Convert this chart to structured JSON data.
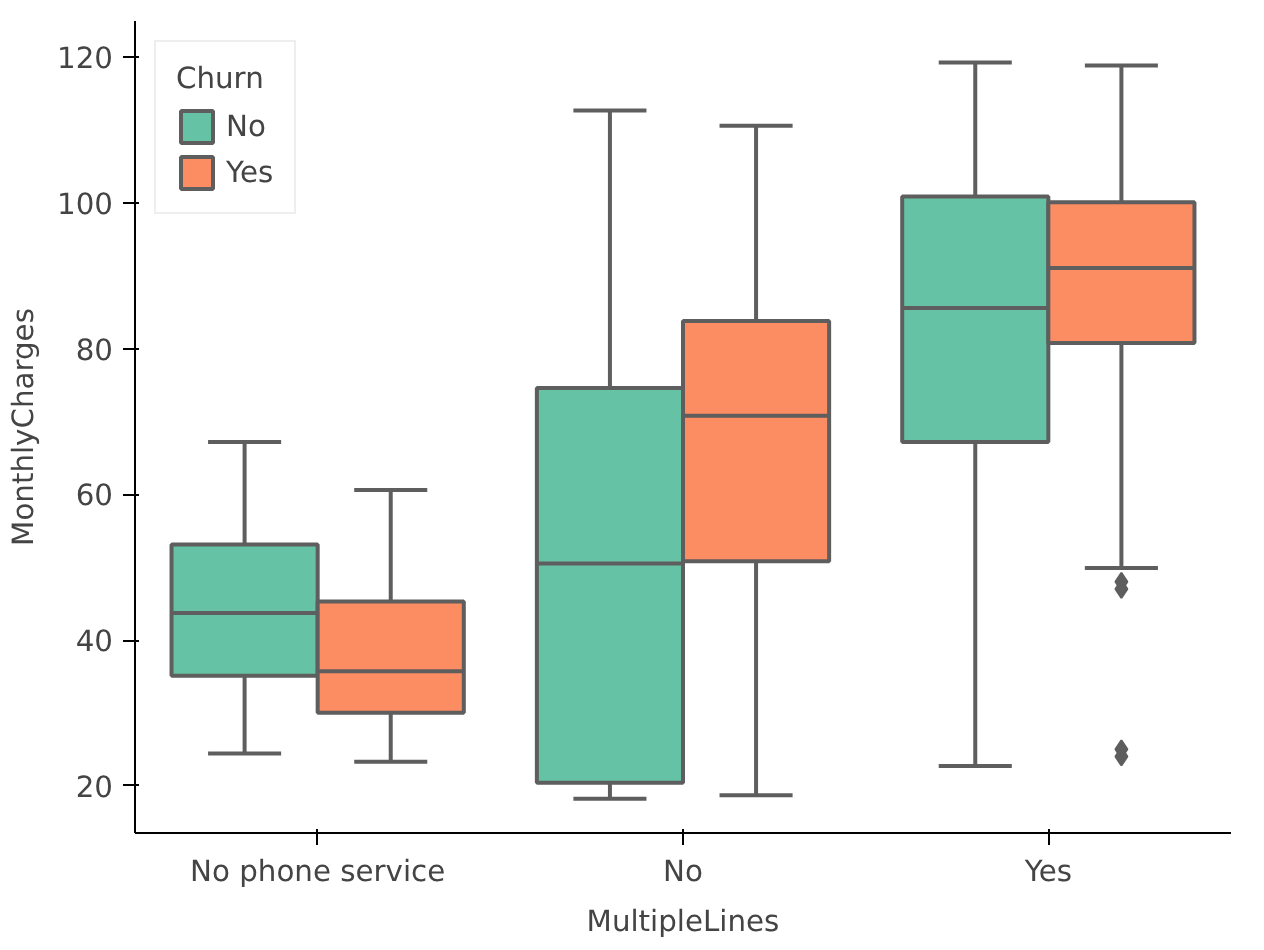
{
  "chart_data": {
    "type": "box",
    "xlabel": "MultipleLines",
    "ylabel": "MonthlyCharges",
    "legend_title": "Churn",
    "categories": [
      "No phone service",
      "No",
      "Yes"
    ],
    "series": [
      {
        "name": "No",
        "color": "#66c2a5",
        "boxes": [
          {
            "low": 24.4,
            "q1": 35.1,
            "median": 43.7,
            "q3": 53.1,
            "high": 67.2
          },
          {
            "low": 18.2,
            "q1": 20.4,
            "median": 50.5,
            "q3": 74.6,
            "high": 112.7
          },
          {
            "low": 22.7,
            "q1": 67.2,
            "median": 85.6,
            "q3": 100.9,
            "high": 119.3
          }
        ]
      },
      {
        "name": "Yes",
        "color": "#fc8d62",
        "boxes": [
          {
            "low": 23.3,
            "q1": 30.0,
            "median": 35.7,
            "q3": 45.3,
            "high": 60.6
          },
          {
            "low": 18.7,
            "q1": 50.8,
            "median": 70.8,
            "q3": 83.8,
            "high": 110.6
          },
          {
            "low": 49.9,
            "q1": 80.8,
            "median": 91.1,
            "q3": 100.1,
            "high": 118.9,
            "outliers": [
              48,
              47,
              25,
              24
            ]
          }
        ]
      }
    ],
    "ylim": [
      13.5,
      125
    ],
    "yticks": [
      20,
      40,
      60,
      80,
      100,
      120
    ],
    "grid": false,
    "legend": "top left"
  }
}
